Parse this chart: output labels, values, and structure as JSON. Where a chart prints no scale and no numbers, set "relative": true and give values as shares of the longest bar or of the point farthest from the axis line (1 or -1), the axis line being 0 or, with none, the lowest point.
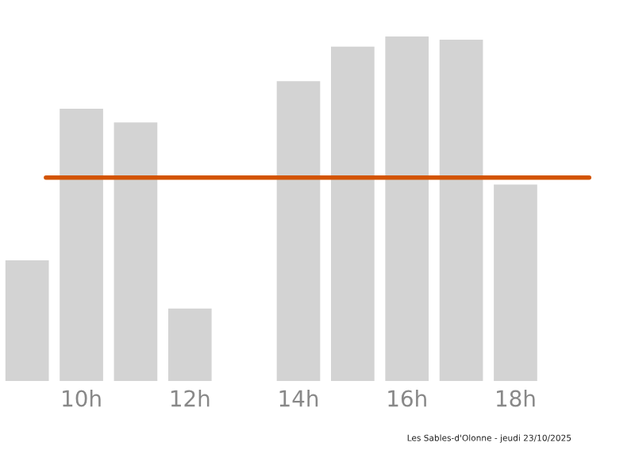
{
  "chart_data": {
    "type": "bar",
    "relative": true,
    "categories": [
      null,
      "10h",
      null,
      "12h",
      null,
      "14h",
      null,
      "16h",
      null,
      "18h",
      null
    ],
    "values": [
      0.35,
      0.79,
      0.75,
      0.21,
      0,
      0.87,
      0.97,
      1,
      0.99,
      0.57,
      0
    ],
    "color": "#d3d3d3",
    "ref_lines": [
      {
        "axis": "y",
        "value": 0.59,
        "color": "#d35400"
      }
    ],
    "grid": false,
    "legend": false,
    "annotations": [
      "Les Sables-d'Olonne - jeudi 23/10/2025"
    ]
  }
}
